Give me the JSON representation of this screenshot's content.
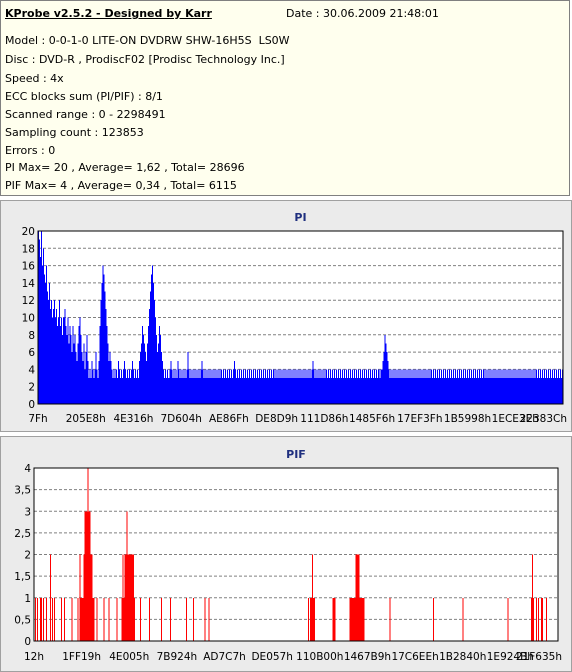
{
  "header": {
    "title": "KProbe v2.5.2 - Designed by Karr",
    "date": "Date : 30.06.2009 21:48:01"
  },
  "info_lines": [
    "Model : 0-0-1-0 LITE-ON DVDRW SHW-16H5S  LS0W",
    "Disc : DVD-R , ProdiscF02 [Prodisc Technology Inc.]",
    "Speed : 4x",
    "ECC blocks sum (PI/PIF) : 8/1",
    "Scanned range : 0 - 2298491",
    "Sampling count : 123853",
    "Errors : 0",
    "PI Max= 20 , Average= 1,62 , Total= 28696",
    "PIF Max= 4 , Average= 0,34 , Total= 6115"
  ],
  "chart_data": [
    {
      "type": "bar",
      "title": "PI",
      "color": "#0000ff",
      "ylim": [
        0,
        20
      ],
      "yticks": [
        0,
        2,
        4,
        6,
        8,
        10,
        12,
        14,
        16,
        18,
        20
      ],
      "xticks": [
        "7Fh",
        "205E8h",
        "4E316h",
        "7D604h",
        "AE86Fh",
        "DE8D9h",
        "111D86h",
        "1485F6h",
        "17EF3Fh",
        "1B5998h",
        "1ECE3Eh",
        "22383Ch"
      ],
      "grid": true,
      "values": [
        20,
        19,
        17,
        20,
        16,
        18,
        15,
        14,
        16,
        13,
        12,
        14,
        11,
        12,
        10,
        11,
        12,
        10,
        11,
        9,
        10,
        12,
        9,
        10,
        8,
        10,
        11,
        9,
        8,
        10,
        7,
        9,
        8,
        6,
        9,
        7,
        8,
        6,
        5,
        7,
        9,
        10,
        8,
        6,
        5,
        7,
        4,
        6,
        8,
        5,
        3,
        4,
        3,
        5,
        4,
        3,
        4,
        6,
        4,
        3,
        5,
        9,
        12,
        14,
        16,
        15,
        13,
        11,
        9,
        7,
        5,
        6,
        5,
        4,
        3,
        4,
        3,
        4,
        3,
        5,
        4,
        3,
        4,
        3,
        4,
        5,
        4,
        3,
        4,
        3,
        4,
        3,
        4,
        5,
        4,
        3,
        4,
        3,
        4,
        3,
        5,
        6,
        7,
        9,
        8,
        7,
        6,
        5,
        7,
        9,
        11,
        13,
        15,
        16,
        14,
        12,
        10,
        8,
        6,
        7,
        9,
        8,
        6,
        5,
        4,
        3,
        4,
        3,
        4,
        3,
        4,
        5,
        4,
        3,
        4,
        3,
        4,
        3,
        5,
        4,
        3,
        4,
        3,
        4,
        3,
        4,
        3,
        4,
        6,
        4,
        3,
        4,
        3,
        4,
        3,
        4,
        3,
        4,
        3,
        4,
        3,
        4,
        5,
        4,
        3,
        4,
        3,
        4,
        3,
        4,
        3,
        4,
        3,
        4,
        3,
        4,
        3,
        4,
        3,
        4,
        3,
        4,
        3,
        4,
        3,
        4,
        3,
        4,
        3,
        4,
        3,
        4,
        3,
        4,
        5,
        4,
        3,
        4,
        3,
        4,
        3,
        4,
        3,
        4,
        3,
        4,
        3,
        4,
        3,
        4,
        3,
        4,
        3,
        4,
        3,
        4,
        3,
        4,
        3,
        4,
        3,
        4,
        3,
        4,
        3,
        4,
        3,
        4,
        3,
        4,
        3,
        4,
        3,
        4,
        3,
        4,
        3,
        4,
        3,
        4,
        3,
        4,
        3,
        4,
        3,
        4,
        3,
        4,
        3,
        4,
        3,
        4,
        3,
        4,
        3,
        4,
        3,
        4,
        3,
        4,
        3,
        4,
        3,
        4,
        3,
        4,
        3,
        4,
        3,
        4,
        3,
        4,
        5,
        4,
        3,
        4,
        3,
        4,
        3,
        4,
        3,
        4,
        3,
        4,
        3,
        4,
        3,
        4,
        3,
        4,
        3,
        4,
        3,
        4,
        3,
        4,
        3,
        4,
        3,
        4,
        3,
        4,
        3,
        4,
        3,
        4,
        3,
        4,
        3,
        4,
        3,
        4,
        3,
        4,
        3,
        4,
        3,
        4,
        3,
        4,
        3,
        4,
        3,
        4,
        3,
        4,
        3,
        4,
        3,
        4,
        3,
        4,
        3,
        4,
        3,
        4,
        3,
        4,
        3,
        4,
        4,
        5,
        6,
        8,
        7,
        6,
        5,
        4,
        3,
        4,
        3,
        4,
        3,
        4,
        3,
        4,
        3,
        4,
        3,
        4,
        3,
        4,
        3,
        4,
        3,
        4,
        3,
        4,
        3,
        4,
        3,
        4,
        3,
        4,
        3,
        4,
        3,
        4,
        3,
        4,
        3,
        4,
        3,
        4,
        3,
        4,
        3,
        4,
        3,
        4,
        3,
        4,
        3,
        4,
        3,
        4,
        3,
        4,
        3,
        4,
        3,
        4,
        3,
        4,
        3,
        4,
        3,
        4,
        3,
        4,
        3,
        4,
        3,
        4,
        3,
        4,
        3,
        4,
        3,
        4,
        3,
        4,
        3,
        4,
        3,
        4,
        3,
        4,
        3,
        4,
        3,
        4,
        3,
        4,
        3,
        4,
        3,
        4,
        3,
        4,
        3,
        4,
        3,
        4,
        3,
        4,
        3,
        4,
        3,
        4,
        3,
        4,
        3,
        4,
        3,
        4,
        3,
        4,
        3,
        4,
        3,
        4,
        3,
        4,
        3,
        4,
        3,
        4,
        3,
        4,
        3,
        4,
        3,
        4,
        3,
        4,
        3,
        4,
        3,
        4,
        3,
        4,
        3,
        4,
        3,
        4,
        3,
        4,
        3,
        4,
        3,
        4,
        3,
        4,
        3,
        4,
        3,
        4,
        3,
        4,
        3,
        4,
        3,
        4,
        3,
        4,
        3,
        4,
        3,
        4,
        3,
        4,
        3,
        4,
        3,
        4,
        3,
        4,
        3,
        4
      ]
    },
    {
      "type": "bar",
      "title": "PIF",
      "color": "#ff0000",
      "ylim": [
        0,
        4
      ],
      "yticks": [
        0,
        0.5,
        1,
        1.5,
        2,
        2.5,
        3,
        3.5,
        4
      ],
      "ytick_labels": [
        "0",
        "0,5",
        "1",
        "1,5",
        "2",
        "2,5",
        "3",
        "3,5",
        "4"
      ],
      "xticks": [
        "12h",
        "1FF19h",
        "4E005h",
        "7B924h",
        "AD7C7h",
        "DE057h",
        "110B00h",
        "1467B9h",
        "17C6EEh",
        "1B2840h",
        "1E924Bh",
        "21F635h"
      ],
      "grid": true,
      "values": [
        0,
        1,
        0,
        1,
        0,
        0,
        1,
        1,
        0,
        1,
        0,
        0,
        1,
        0,
        0,
        0,
        2,
        0,
        1,
        0,
        1,
        0,
        0,
        0,
        0,
        0,
        0,
        1,
        0,
        0,
        1,
        0,
        0,
        0,
        0,
        0,
        0,
        1,
        0,
        0,
        0,
        0,
        0,
        1,
        0,
        2,
        1,
        1,
        1,
        2,
        3,
        3,
        3,
        4,
        3,
        3,
        2,
        2,
        1,
        1,
        0,
        0,
        1,
        0,
        0,
        0,
        0,
        0,
        0,
        1,
        0,
        0,
        0,
        0,
        1,
        0,
        0,
        0,
        0,
        0,
        0,
        0,
        1,
        0,
        0,
        0,
        0,
        1,
        2,
        1,
        2,
        2,
        3,
        2,
        2,
        2,
        2,
        2,
        2,
        1,
        0,
        0,
        0,
        0,
        0,
        1,
        0,
        0,
        0,
        0,
        0,
        0,
        0,
        0,
        1,
        0,
        0,
        0,
        0,
        0,
        0,
        0,
        0,
        0,
        0,
        0,
        1,
        0,
        0,
        0,
        0,
        0,
        0,
        0,
        0,
        1,
        0,
        0,
        0,
        0,
        0,
        0,
        0,
        0,
        0,
        0,
        0,
        0,
        0,
        0,
        0,
        1,
        0,
        0,
        0,
        0,
        0,
        0,
        1,
        0,
        0,
        0,
        0,
        0,
        0,
        0,
        0,
        0,
        0,
        1,
        0,
        0,
        0,
        1,
        0,
        0,
        0,
        0,
        0,
        0,
        0,
        0,
        0,
        0,
        0,
        0,
        0,
        0,
        0,
        0,
        0,
        0,
        0,
        0,
        0,
        0,
        0,
        0,
        0,
        0,
        0,
        0,
        0,
        0,
        0,
        0,
        0,
        0,
        0,
        0,
        0,
        0,
        0,
        0,
        0,
        0,
        0,
        0,
        0,
        0,
        0,
        0,
        0,
        0,
        0,
        0,
        0,
        0,
        0,
        0,
        0,
        0,
        0,
        0,
        0,
        0,
        0,
        0,
        0,
        0,
        0,
        0,
        0,
        0,
        0,
        0,
        0,
        0,
        0,
        0,
        0,
        0,
        0,
        0,
        0,
        0,
        0,
        0,
        0,
        0,
        0,
        0,
        0,
        0,
        0,
        0,
        0,
        0,
        0,
        0,
        0,
        0,
        1,
        0,
        1,
        1,
        2,
        1,
        1,
        0,
        0,
        0,
        0,
        0,
        0,
        0,
        0,
        0,
        0,
        0,
        0,
        0,
        0,
        0,
        0,
        0,
        1,
        1,
        1,
        0,
        0,
        0,
        0,
        0,
        0,
        0,
        0,
        0,
        0,
        0,
        0,
        0,
        0,
        1,
        1,
        1,
        1,
        1,
        1,
        2,
        2,
        2,
        2,
        1,
        1,
        1,
        1,
        1,
        0,
        0,
        0,
        0,
        0,
        0,
        0,
        0,
        0,
        0,
        0,
        0,
        0,
        0,
        0,
        0,
        0,
        0,
        0,
        0,
        0,
        0,
        0,
        0,
        0,
        1,
        0,
        0,
        0,
        0,
        0,
        0,
        0,
        0,
        0,
        0,
        0,
        0,
        0,
        0,
        0,
        0,
        0,
        0,
        0,
        0,
        0,
        0,
        0,
        0,
        0,
        0,
        0,
        0,
        0,
        0,
        0,
        0,
        0,
        0,
        0,
        0,
        0,
        0,
        0,
        0,
        0,
        0,
        1,
        0,
        0,
        0,
        0,
        0,
        0,
        0,
        0,
        0,
        0,
        0,
        0,
        0,
        0,
        0,
        0,
        0,
        0,
        0,
        0,
        0,
        0,
        0,
        0,
        0,
        0,
        0,
        0,
        1,
        0,
        0,
        0,
        0,
        0,
        0,
        0,
        0,
        0,
        0,
        0,
        0,
        0,
        0,
        0,
        0,
        0,
        0,
        0,
        0,
        0,
        0,
        0,
        0,
        0,
        0,
        0,
        0,
        0,
        0,
        0,
        0,
        0,
        0,
        0,
        0,
        0,
        0,
        0,
        0,
        0,
        0,
        0,
        0,
        1,
        0,
        0,
        0,
        0,
        0,
        0,
        0,
        0,
        0,
        0,
        0,
        0,
        0,
        0,
        0,
        0,
        0,
        0,
        0,
        0,
        0,
        0,
        1,
        2,
        1,
        0,
        0,
        1,
        0,
        1,
        0,
        0,
        1,
        1,
        0,
        0,
        0,
        1,
        0,
        0,
        0,
        0,
        0,
        0,
        0,
        0,
        0,
        0,
        0
      ]
    }
  ]
}
